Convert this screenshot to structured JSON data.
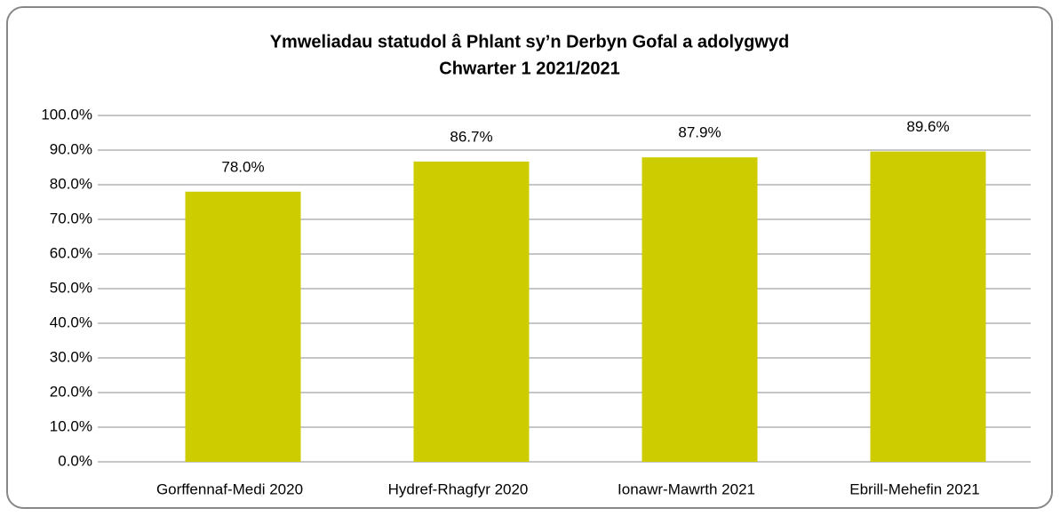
{
  "chart_data": {
    "type": "bar",
    "title": "Ymweliadau statudol â Phlant sy’n Derbyn Gofal a adolygwyd",
    "subtitle": "Chwarter 1  2021/2021",
    "categories": [
      "Gorffennaf-Medi 2020",
      "Hydref-Rhagfyr 2020",
      "Ionawr-Mawrth 2021",
      "Ebrill-Mehefin 2021"
    ],
    "values": [
      78.0,
      86.7,
      87.9,
      89.6
    ],
    "value_labels": [
      "78.0%",
      "86.7%",
      "87.9%",
      "89.6%"
    ],
    "color": "#cccc00",
    "ylim": [
      0,
      100
    ],
    "yticks": [
      {
        "value": 0,
        "label": "0.0%"
      },
      {
        "value": 10,
        "label": "10.0%"
      },
      {
        "value": 20,
        "label": "20.0%"
      },
      {
        "value": 30,
        "label": "30.0%"
      },
      {
        "value": 40,
        "label": "40.0%"
      },
      {
        "value": 50,
        "label": "50.0%"
      },
      {
        "value": 60,
        "label": "60.0%"
      },
      {
        "value": 70,
        "label": "70.0%"
      },
      {
        "value": 80,
        "label": "80.0%"
      },
      {
        "value": 90,
        "label": "90.0%"
      },
      {
        "value": 100,
        "label": "100.0%"
      }
    ],
    "grid": true
  }
}
